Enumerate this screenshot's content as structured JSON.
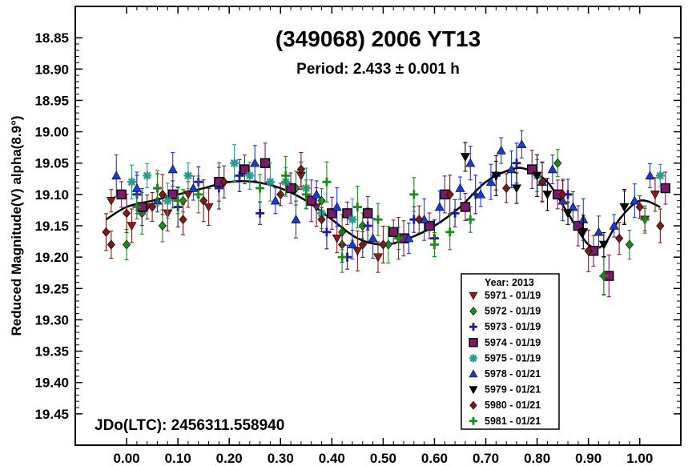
{
  "chart_data": {
    "type": "scatter",
    "title": "(349068) 2006 YT13",
    "subtitle": "Period: 2.433 ± 0.001 h",
    "xlabel": "",
    "ylabel": "Reduced Magnitude(V) alpha(8.9°)",
    "annotation": "JDo(LTC): 2456311.558940",
    "xlim": [
      -0.1,
      1.08
    ],
    "ylim": [
      18.8,
      19.5
    ],
    "y_inverted": true,
    "x_ticks": [
      0.0,
      0.1,
      0.2,
      0.3,
      0.4,
      0.5,
      0.6,
      0.7,
      0.8,
      0.9,
      1.0
    ],
    "x_tick_labels": [
      "0.00",
      "0.10",
      "0.20",
      "0.30",
      "0.40",
      "0.50",
      "0.60",
      "0.70",
      "0.80",
      "0.90",
      "1.00"
    ],
    "y_ticks": [
      18.85,
      18.9,
      18.95,
      19.0,
      19.05,
      19.1,
      19.15,
      19.2,
      19.25,
      19.3,
      19.35,
      19.4,
      19.45
    ],
    "y_tick_labels": [
      "18.85",
      "18.90",
      "18.95",
      "19.00",
      "19.05",
      "19.10",
      "19.15",
      "19.20",
      "19.25",
      "19.30",
      "19.35",
      "19.40",
      "19.45"
    ],
    "grid": false,
    "legend": {
      "title": "Year: 2013",
      "placement": "bottom-right"
    },
    "fit_curve": {
      "color": "#000000",
      "x": [
        -0.04,
        0.0,
        0.05,
        0.1,
        0.15,
        0.2,
        0.25,
        0.3,
        0.35,
        0.4,
        0.45,
        0.5,
        0.55,
        0.6,
        0.65,
        0.7,
        0.75,
        0.78,
        0.82,
        0.86,
        0.9,
        0.93,
        0.96,
        1.0,
        1.04
      ],
      "y": [
        19.14,
        19.12,
        19.11,
        19.1,
        19.09,
        19.08,
        19.08,
        19.09,
        19.11,
        19.14,
        19.17,
        19.18,
        19.17,
        19.15,
        19.12,
        19.08,
        19.06,
        19.06,
        19.08,
        19.13,
        19.18,
        19.18,
        19.14,
        19.11,
        19.12
      ]
    },
    "series": [
      {
        "name": "5971 - 01/19",
        "marker": "triangle-down",
        "color": "#8b1a1a",
        "x": [
          -0.03,
          0.01,
          0.04,
          0.08,
          0.12,
          0.16,
          0.34,
          0.37,
          0.41,
          0.45,
          0.49,
          0.53,
          0.97,
          1.01,
          1.03
        ],
        "y": [
          19.11,
          19.15,
          19.12,
          19.13,
          19.1,
          19.12,
          19.07,
          19.12,
          19.17,
          19.19,
          19.2,
          19.17,
          19.12,
          19.14,
          19.1
        ]
      },
      {
        "name": "5972 - 01/19",
        "marker": "diamond",
        "color": "#1a8a1a",
        "x": [
          0.0,
          0.03,
          0.07,
          0.11,
          0.33,
          0.38,
          0.42,
          0.46,
          0.51,
          0.84,
          0.93,
          0.98
        ],
        "y": [
          19.18,
          19.13,
          19.15,
          19.11,
          19.09,
          19.11,
          19.16,
          19.15,
          19.18,
          19.05,
          19.23,
          19.18
        ]
      },
      {
        "name": "5973 - 01/19",
        "marker": "plus",
        "color": "#1a1a9a",
        "x": [
          0.02,
          0.06,
          0.1,
          0.14,
          0.18,
          0.22,
          0.26,
          0.39,
          0.43,
          0.47,
          0.56,
          0.6,
          0.64,
          0.68,
          0.72,
          0.76,
          0.86
        ],
        "y": [
          19.1,
          19.09,
          19.12,
          19.08,
          19.09,
          19.07,
          19.13,
          19.16,
          19.2,
          19.15,
          19.14,
          19.17,
          19.13,
          19.1,
          19.07,
          19.05,
          19.1
        ]
      },
      {
        "name": "5974 - 01/19",
        "marker": "square",
        "color": "#7a1a6a",
        "x": [
          -0.01,
          0.03,
          0.09,
          0.18,
          0.23,
          0.27,
          0.32,
          0.36,
          0.4,
          0.43,
          0.47,
          0.52,
          0.54,
          0.59,
          0.62,
          0.66,
          0.79,
          0.84,
          0.88,
          0.91,
          0.94,
          1.05
        ],
        "y": [
          19.1,
          19.12,
          19.1,
          19.08,
          19.06,
          19.05,
          19.09,
          19.11,
          19.13,
          19.13,
          19.13,
          19.16,
          19.17,
          19.15,
          19.1,
          19.12,
          19.06,
          19.1,
          19.15,
          19.19,
          19.23,
          19.09
        ]
      },
      {
        "name": "5975 - 01/19",
        "marker": "asterisk",
        "color": "#2a9a8a",
        "x": [
          0.01,
          0.04,
          0.08,
          0.12,
          0.21,
          0.24,
          0.28,
          0.31,
          0.35,
          0.38,
          0.44,
          0.8,
          1.04
        ],
        "y": [
          19.08,
          19.07,
          19.11,
          19.07,
          19.05,
          19.07,
          19.08,
          19.08,
          19.09,
          19.13,
          19.14,
          19.07,
          19.07
        ]
      },
      {
        "name": "5978 - 01/21",
        "marker": "triangle-up",
        "color": "#1a3ad8",
        "x": [
          -0.02,
          0.02,
          0.06,
          0.09,
          0.13,
          0.25,
          0.29,
          0.33,
          0.37,
          0.41,
          0.44,
          0.48,
          0.55,
          0.58,
          0.61,
          0.65,
          0.67,
          0.69,
          0.71,
          0.73,
          0.75,
          0.77,
          0.81,
          0.83,
          0.85,
          0.87,
          0.89,
          0.92,
          0.95,
          0.99,
          1.02
        ],
        "y": [
          19.07,
          19.09,
          19.11,
          19.06,
          19.09,
          19.05,
          19.11,
          19.14,
          19.1,
          19.12,
          19.18,
          19.17,
          19.17,
          19.14,
          19.12,
          19.09,
          19.05,
          19.1,
          19.08,
          19.03,
          19.06,
          19.02,
          19.08,
          19.06,
          19.11,
          19.12,
          19.14,
          19.16,
          19.15,
          19.11,
          19.07
        ]
      },
      {
        "name": "5979 - 01/21",
        "marker": "triangle-down",
        "color": "#000000",
        "x": [
          0.66,
          0.72,
          0.76,
          0.8,
          0.82,
          0.86,
          0.89,
          0.93,
          0.97
        ],
        "y": [
          19.04,
          19.07,
          19.09,
          19.07,
          19.1,
          19.13,
          19.16,
          19.18,
          19.12
        ]
      },
      {
        "name": "5980 - 01/21",
        "marker": "diamond",
        "color": "#7a1a1a",
        "x": [
          -0.04,
          -0.03,
          0.0,
          0.05,
          0.07,
          0.11,
          0.15,
          0.19,
          0.3,
          0.34,
          0.38,
          0.42,
          0.46,
          0.5,
          0.57,
          0.63,
          0.74,
          0.81,
          0.85,
          0.9,
          0.96,
          1.0,
          1.04
        ],
        "y": [
          19.16,
          19.18,
          19.13,
          19.12,
          19.1,
          19.14,
          19.11,
          19.08,
          19.1,
          19.06,
          19.14,
          19.18,
          19.18,
          19.18,
          19.14,
          19.1,
          19.09,
          19.08,
          19.1,
          19.19,
          19.17,
          19.12,
          19.15
        ]
      },
      {
        "name": "5981 - 01/21",
        "marker": "plus",
        "color": "#1a8a1a",
        "x": [
          0.02,
          0.06,
          0.1,
          0.14,
          0.26,
          0.31,
          0.35,
          0.39,
          0.42,
          0.45,
          0.49,
          0.53,
          0.56,
          0.6,
          0.63,
          0.67,
          0.93,
          1.01
        ],
        "y": [
          19.12,
          19.09,
          19.11,
          19.1,
          19.09,
          19.07,
          19.1,
          19.08,
          19.2,
          19.12,
          19.14,
          19.17,
          19.1,
          19.18,
          19.16,
          19.14,
          19.23,
          19.14
        ]
      }
    ]
  }
}
